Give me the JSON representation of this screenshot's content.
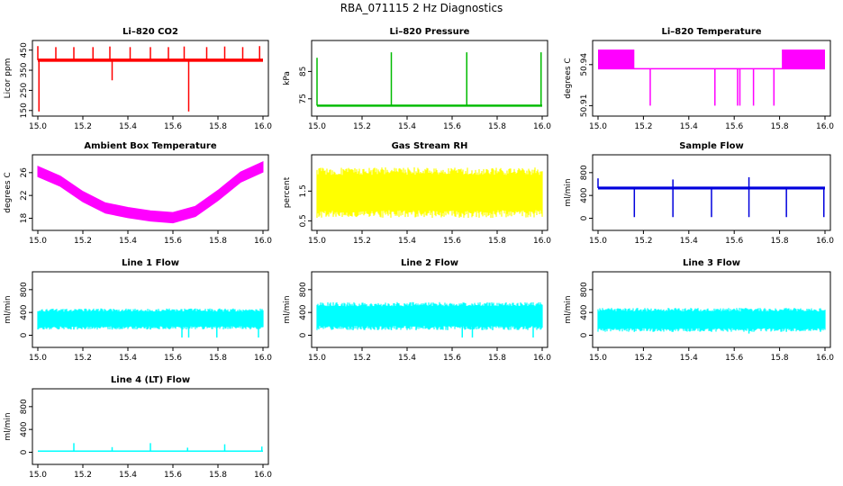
{
  "figure": {
    "title": "RBA_071115  2 Hz Diagnostics"
  },
  "chart_data": [
    {
      "type": "line",
      "title": "Li–820 CO2",
      "ylabel": "Licor ppm",
      "color": "#ff0000",
      "xlim": [
        15.0,
        16.0
      ],
      "ylim": [
        140,
        480
      ],
      "x_ticks": [
        "15.0",
        "15.2",
        "15.4",
        "15.6",
        "15.8",
        "16.0"
      ],
      "y_ticks": [
        {
          "v": 150,
          "label": "150"
        },
        {
          "v": 250,
          "label": "250"
        },
        {
          "v": 350,
          "label": "350"
        },
        {
          "v": 450,
          "label": "450"
        }
      ],
      "baseline": 400,
      "band": 8,
      "spikes": [
        {
          "x": 15.0,
          "y": 470
        },
        {
          "x": 15.005,
          "y": 145
        },
        {
          "x": 15.08,
          "y": 465
        },
        {
          "x": 15.16,
          "y": 465
        },
        {
          "x": 15.245,
          "y": 465
        },
        {
          "x": 15.32,
          "y": 468
        },
        {
          "x": 15.33,
          "y": 300
        },
        {
          "x": 15.41,
          "y": 465
        },
        {
          "x": 15.5,
          "y": 465
        },
        {
          "x": 15.58,
          "y": 465
        },
        {
          "x": 15.65,
          "y": 468
        },
        {
          "x": 15.67,
          "y": 145
        },
        {
          "x": 15.75,
          "y": 465
        },
        {
          "x": 15.83,
          "y": 468
        },
        {
          "x": 15.91,
          "y": 465
        },
        {
          "x": 15.985,
          "y": 470
        }
      ]
    },
    {
      "type": "line",
      "title": "Li–820 Pressure",
      "ylabel": "kPa",
      "color": "#00bb00",
      "xlim": [
        15.0,
        16.0
      ],
      "ylim": [
        70,
        95
      ],
      "x_ticks": [
        "15.0",
        "15.2",
        "15.4",
        "15.6",
        "15.8",
        "16.0"
      ],
      "y_ticks": [
        {
          "v": 75,
          "label": "75"
        },
        {
          "v": 85,
          "label": "85"
        }
      ],
      "baseline": 72.5,
      "band": 0.4,
      "spikes": [
        {
          "x": 15.0,
          "y": 90
        },
        {
          "x": 15.33,
          "y": 92
        },
        {
          "x": 15.665,
          "y": 92
        },
        {
          "x": 15.995,
          "y": 92
        }
      ]
    },
    {
      "type": "line",
      "title": "Li–820 Temperature",
      "ylabel": "degrees C",
      "color": "#ff00ff",
      "xlim": [
        15.0,
        16.0
      ],
      "ylim": [
        50.905,
        50.955
      ],
      "x_ticks": [
        "15.0",
        "15.2",
        "15.4",
        "15.6",
        "15.8",
        "16.0"
      ],
      "y_ticks": [
        {
          "v": 50.91,
          "label": "50.91"
        },
        {
          "v": 50.94,
          "label": "50.94"
        }
      ],
      "baseline": 50.937,
      "band": 0,
      "bands": [
        {
          "x0": 15.0,
          "x1": 15.16,
          "lo": 50.937,
          "hi": 50.951
        },
        {
          "x0": 15.81,
          "x1": 16.0,
          "lo": 50.937,
          "hi": 50.951
        }
      ],
      "dips": [
        {
          "x": 15.23,
          "y": 50.91
        },
        {
          "x": 15.515,
          "y": 50.91
        },
        {
          "x": 15.615,
          "y": 50.91
        },
        {
          "x": 15.625,
          "y": 50.91
        },
        {
          "x": 15.685,
          "y": 50.91
        },
        {
          "x": 15.775,
          "y": 50.91
        }
      ]
    },
    {
      "type": "line",
      "title": "Ambient Box Temperature",
      "ylabel": "degrees C",
      "color": "#ff00ff",
      "xlim": [
        15.0,
        16.0
      ],
      "ylim": [
        16.5,
        28.5
      ],
      "x_ticks": [
        "15.0",
        "15.2",
        "15.4",
        "15.6",
        "15.8",
        "16.0"
      ],
      "y_ticks": [
        {
          "v": 18,
          "label": "18"
        },
        {
          "v": 22,
          "label": "22"
        },
        {
          "v": 26,
          "label": "26"
        }
      ],
      "band": 0.9,
      "points": [
        {
          "x": 15.0,
          "y": 26.2
        },
        {
          "x": 15.1,
          "y": 24.5
        },
        {
          "x": 15.2,
          "y": 21.8
        },
        {
          "x": 15.3,
          "y": 19.8
        },
        {
          "x": 15.4,
          "y": 19.0
        },
        {
          "x": 15.5,
          "y": 18.4
        },
        {
          "x": 15.6,
          "y": 18.1
        },
        {
          "x": 15.7,
          "y": 19.2
        },
        {
          "x": 15.8,
          "y": 22.0
        },
        {
          "x": 15.9,
          "y": 25.2
        },
        {
          "x": 16.0,
          "y": 27.0
        }
      ]
    },
    {
      "type": "line",
      "title": "Gas Stream RH",
      "ylabel": "percent",
      "color": "#ffff00",
      "xlim": [
        15.0,
        16.0
      ],
      "ylim": [
        0.3,
        2.6
      ],
      "x_ticks": [
        "15.0",
        "15.2",
        "15.4",
        "15.6",
        "15.8",
        "16.0"
      ],
      "y_ticks": [
        {
          "v": 0.5,
          "label": "0.5"
        },
        {
          "v": 1.5,
          "label": "1.5"
        }
      ],
      "baseline": 1.25,
      "band": 0,
      "noise_lo": 0.6,
      "noise_hi": 2.3
    },
    {
      "type": "line",
      "title": "Sample Flow",
      "ylabel": "ml/min",
      "color": "#0000dd",
      "xlim": [
        15.0,
        16.0
      ],
      "ylim": [
        -150,
        1050
      ],
      "x_ticks": [
        "15.0",
        "15.2",
        "15.4",
        "15.6",
        "15.8",
        "16.0"
      ],
      "y_ticks": [
        {
          "v": 0,
          "label": "0"
        },
        {
          "v": 400,
          "label": "400"
        },
        {
          "v": 800,
          "label": "800"
        }
      ],
      "baseline": 530,
      "band": 25,
      "spikes": [
        {
          "x": 15.0,
          "y": 700
        },
        {
          "x": 15.33,
          "y": 680
        },
        {
          "x": 15.665,
          "y": 720
        }
      ],
      "dips": [
        {
          "x": 15.16,
          "y": 20
        },
        {
          "x": 15.33,
          "y": 20
        },
        {
          "x": 15.5,
          "y": 20
        },
        {
          "x": 15.665,
          "y": 20
        },
        {
          "x": 15.83,
          "y": 20
        },
        {
          "x": 15.995,
          "y": 20
        }
      ]
    },
    {
      "type": "line",
      "title": "Line 1 Flow",
      "ylabel": "ml/min",
      "color": "#00ffff",
      "xlim": [
        15.0,
        16.0
      ],
      "ylim": [
        -150,
        1050
      ],
      "x_ticks": [
        "15.0",
        "15.2",
        "15.4",
        "15.6",
        "15.8",
        "16.0"
      ],
      "y_ticks": [
        {
          "v": 0,
          "label": "0"
        },
        {
          "v": 400,
          "label": "400"
        },
        {
          "v": 800,
          "label": "800"
        }
      ],
      "baseline": 280,
      "band": 0,
      "noise_lo": 100,
      "noise_hi": 470,
      "dips": [
        {
          "x": 15.16,
          "y": 100
        },
        {
          "x": 15.33,
          "y": 100
        },
        {
          "x": 15.5,
          "y": 100
        },
        {
          "x": 15.64,
          "y": -40
        },
        {
          "x": 15.67,
          "y": -40
        },
        {
          "x": 15.795,
          "y": -40
        },
        {
          "x": 15.98,
          "y": -40
        }
      ]
    },
    {
      "type": "line",
      "title": "Line 2 Flow",
      "ylabel": "ml/min",
      "color": "#00ffff",
      "xlim": [
        15.0,
        16.0
      ],
      "ylim": [
        -150,
        1050
      ],
      "x_ticks": [
        "15.0",
        "15.2",
        "15.4",
        "15.6",
        "15.8",
        "16.0"
      ],
      "y_ticks": [
        {
          "v": 0,
          "label": "0"
        },
        {
          "v": 400,
          "label": "400"
        },
        {
          "v": 800,
          "label": "800"
        }
      ],
      "baseline": 330,
      "band": 0,
      "noise_lo": 90,
      "noise_hi": 580,
      "dips": [
        {
          "x": 15.16,
          "y": 90
        },
        {
          "x": 15.33,
          "y": 90
        },
        {
          "x": 15.44,
          "y": 90
        },
        {
          "x": 15.58,
          "y": 90
        },
        {
          "x": 15.645,
          "y": -40
        },
        {
          "x": 15.69,
          "y": -40
        },
        {
          "x": 15.78,
          "y": 90
        },
        {
          "x": 15.96,
          "y": -40
        }
      ]
    },
    {
      "type": "line",
      "title": "Line 3 Flow",
      "ylabel": "ml/min",
      "color": "#00ffff",
      "xlim": [
        15.0,
        16.0
      ],
      "ylim": [
        -150,
        1050
      ],
      "x_ticks": [
        "15.0",
        "15.2",
        "15.4",
        "15.6",
        "15.8",
        "16.0"
      ],
      "y_ticks": [
        {
          "v": 0,
          "label": "0"
        },
        {
          "v": 400,
          "label": "400"
        },
        {
          "v": 800,
          "label": "800"
        }
      ],
      "baseline": 280,
      "band": 0,
      "noise_lo": 60,
      "noise_hi": 480,
      "dips": [
        {
          "x": 15.16,
          "y": 60
        },
        {
          "x": 15.33,
          "y": 60
        },
        {
          "x": 15.5,
          "y": 60
        },
        {
          "x": 15.665,
          "y": 30
        },
        {
          "x": 15.83,
          "y": 60
        },
        {
          "x": 15.98,
          "y": 60
        }
      ]
    },
    {
      "type": "line",
      "title": "Line 4 (LT) Flow",
      "ylabel": "ml/min",
      "color": "#00ffff",
      "xlim": [
        15.0,
        16.0
      ],
      "ylim": [
        -150,
        1050
      ],
      "x_ticks": [
        "15.0",
        "15.2",
        "15.4",
        "15.6",
        "15.8",
        "16.0"
      ],
      "y_ticks": [
        {
          "v": 0,
          "label": "0"
        },
        {
          "v": 400,
          "label": "400"
        },
        {
          "v": 800,
          "label": "800"
        }
      ],
      "baseline": 20,
      "band": 10,
      "spikes": [
        {
          "x": 15.16,
          "y": 160
        },
        {
          "x": 15.33,
          "y": 90
        },
        {
          "x": 15.5,
          "y": 160
        },
        {
          "x": 15.665,
          "y": 80
        },
        {
          "x": 15.83,
          "y": 140
        },
        {
          "x": 15.995,
          "y": 100
        }
      ]
    }
  ]
}
